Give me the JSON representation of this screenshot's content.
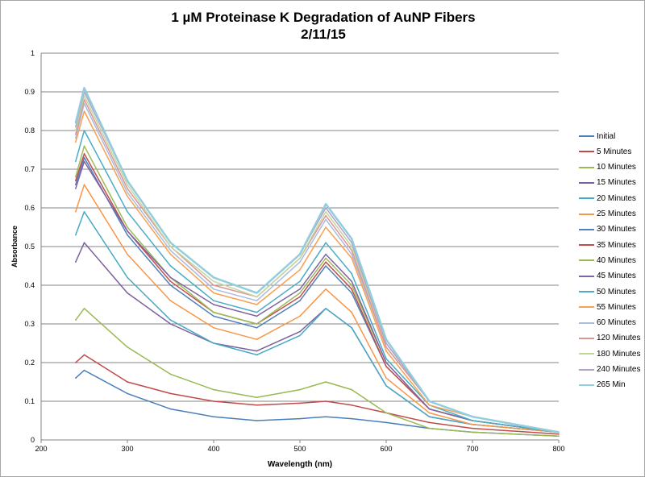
{
  "chart_data": {
    "type": "line",
    "title": "1 µM Proteinase K Degradation of AuNP Fibers",
    "subtitle": "2/11/15",
    "xlabel": "Wavelength (nm)",
    "ylabel": "Absorbance",
    "xlim": [
      200,
      800
    ],
    "ylim": [
      0,
      1
    ],
    "xticks": [
      "200",
      "300",
      "400",
      "500",
      "600",
      "700",
      "800"
    ],
    "yticks": [
      "0",
      "0.1",
      "0.2",
      "0.3",
      "0.4",
      "0.5",
      "0.6",
      "0.7",
      "0.8",
      "0.9",
      "1"
    ],
    "grid": "horizontal",
    "legend": "right",
    "x": [
      240,
      250,
      300,
      350,
      400,
      450,
      500,
      530,
      560,
      600,
      650,
      700,
      800
    ],
    "series": [
      {
        "name": "Initial",
        "color": "#4A7EBB",
        "values": [
          0.16,
          0.18,
          0.12,
          0.08,
          0.06,
          0.05,
          0.055,
          0.06,
          0.055,
          0.045,
          0.03,
          0.02,
          0.01
        ]
      },
      {
        "name": "5 Minutes",
        "color": "#BE4B48",
        "values": [
          0.2,
          0.22,
          0.15,
          0.12,
          0.1,
          0.09,
          0.095,
          0.1,
          0.09,
          0.07,
          0.045,
          0.03,
          0.015
        ]
      },
      {
        "name": "10 Minutes",
        "color": "#98B954",
        "values": [
          0.31,
          0.34,
          0.24,
          0.17,
          0.13,
          0.11,
          0.13,
          0.15,
          0.13,
          0.07,
          0.03,
          0.02,
          0.01
        ]
      },
      {
        "name": "15 Minutes",
        "color": "#7D60A0",
        "values": [
          0.46,
          0.51,
          0.38,
          0.3,
          0.25,
          0.23,
          0.28,
          0.34,
          0.29,
          0.14,
          0.06,
          0.04,
          0.02
        ]
      },
      {
        "name": "20 Minutes",
        "color": "#46AAC5",
        "values": [
          0.53,
          0.59,
          0.42,
          0.31,
          0.25,
          0.22,
          0.27,
          0.34,
          0.29,
          0.14,
          0.06,
          0.04,
          0.02
        ]
      },
      {
        "name": "25 Minutes",
        "color": "#F79646",
        "values": [
          0.59,
          0.66,
          0.48,
          0.36,
          0.29,
          0.26,
          0.32,
          0.39,
          0.33,
          0.16,
          0.07,
          0.04,
          0.02
        ]
      },
      {
        "name": "30 Minutes",
        "color": "#4F81BD",
        "values": [
          0.66,
          0.73,
          0.53,
          0.4,
          0.32,
          0.29,
          0.36,
          0.45,
          0.38,
          0.19,
          0.08,
          0.05,
          0.02
        ]
      },
      {
        "name": "35 Minutes",
        "color": "#C0504D",
        "values": [
          0.67,
          0.74,
          0.54,
          0.41,
          0.33,
          0.3,
          0.37,
          0.46,
          0.39,
          0.19,
          0.08,
          0.05,
          0.02
        ]
      },
      {
        "name": "40 Minutes",
        "color": "#9BBB59",
        "values": [
          0.68,
          0.76,
          0.55,
          0.42,
          0.33,
          0.3,
          0.38,
          0.47,
          0.4,
          0.2,
          0.08,
          0.05,
          0.02
        ]
      },
      {
        "name": "45 Minutes",
        "color": "#8064A2",
        "values": [
          0.65,
          0.72,
          0.54,
          0.42,
          0.35,
          0.32,
          0.39,
          0.48,
          0.41,
          0.2,
          0.08,
          0.05,
          0.02
        ]
      },
      {
        "name": "50 Minutes",
        "color": "#4BACC6",
        "values": [
          0.72,
          0.8,
          0.59,
          0.45,
          0.36,
          0.33,
          0.41,
          0.51,
          0.43,
          0.21,
          0.09,
          0.05,
          0.02
        ]
      },
      {
        "name": "55 Minutes",
        "color": "#F9A050",
        "values": [
          0.77,
          0.85,
          0.63,
          0.48,
          0.38,
          0.35,
          0.44,
          0.55,
          0.47,
          0.23,
          0.09,
          0.06,
          0.02
        ]
      },
      {
        "name": "60 Minutes",
        "color": "#A9BCE0",
        "values": [
          0.78,
          0.87,
          0.64,
          0.49,
          0.39,
          0.36,
          0.46,
          0.57,
          0.48,
          0.24,
          0.1,
          0.06,
          0.02
        ]
      },
      {
        "name": "120 Minutes",
        "color": "#D99694",
        "values": [
          0.79,
          0.88,
          0.65,
          0.5,
          0.4,
          0.37,
          0.47,
          0.58,
          0.49,
          0.24,
          0.1,
          0.06,
          0.02
        ]
      },
      {
        "name": "180 Minutes",
        "color": "#C3D69B",
        "values": [
          0.8,
          0.89,
          0.66,
          0.5,
          0.41,
          0.37,
          0.47,
          0.59,
          0.5,
          0.25,
          0.1,
          0.06,
          0.02
        ]
      },
      {
        "name": "240 Minutes",
        "color": "#B3A2C7",
        "values": [
          0.81,
          0.9,
          0.67,
          0.51,
          0.42,
          0.38,
          0.48,
          0.6,
          0.51,
          0.25,
          0.1,
          0.06,
          0.02
        ]
      },
      {
        "name": "265 Min",
        "color": "#93CDDD",
        "values": [
          0.82,
          0.91,
          0.67,
          0.51,
          0.42,
          0.38,
          0.48,
          0.61,
          0.52,
          0.26,
          0.1,
          0.06,
          0.02
        ]
      }
    ]
  }
}
